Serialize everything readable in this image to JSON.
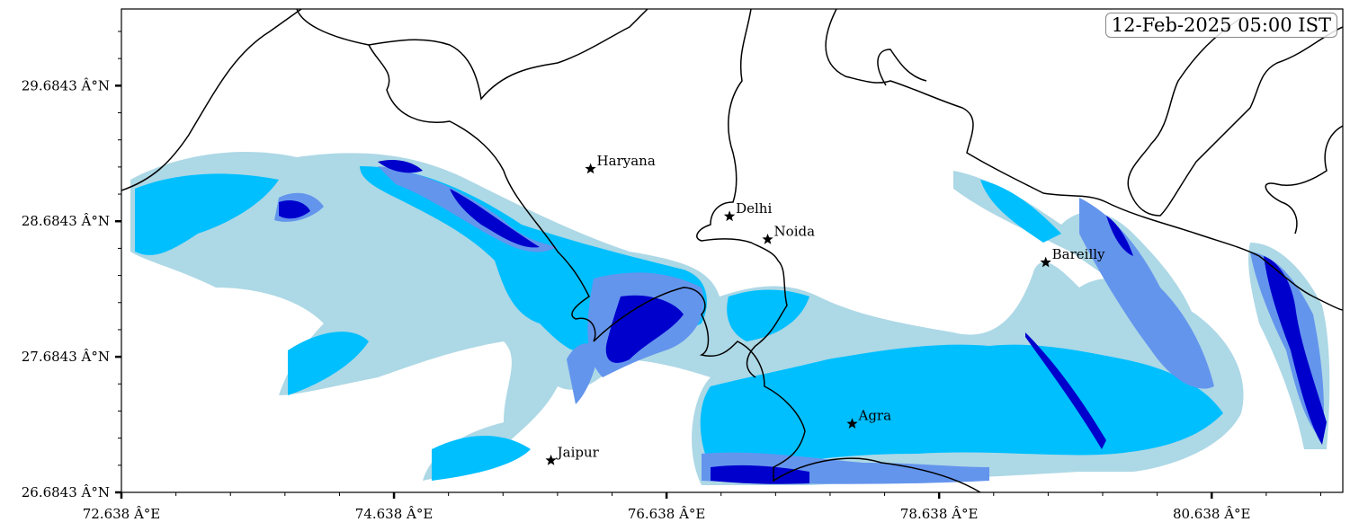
{
  "map": {
    "timestamp": "12-Feb-2025 05:00 IST",
    "extent": {
      "lon": [
        72.638,
        81.6
      ],
      "lat": [
        26.6843,
        30.25
      ]
    },
    "x_ticks": [
      {
        "value": 72.638,
        "label": "72.638 Â°E"
      },
      {
        "value": 74.638,
        "label": "74.638 Â°E"
      },
      {
        "value": 76.638,
        "label": "76.638 Â°E"
      },
      {
        "value": 78.638,
        "label": "78.638 Â°E"
      },
      {
        "value": 80.638,
        "label": "80.638 Â°E"
      }
    ],
    "y_ticks": [
      {
        "value": 26.6843,
        "label": "26.6843 Â°N"
      },
      {
        "value": 27.6843,
        "label": "27.6843 Â°N"
      },
      {
        "value": 28.6843,
        "label": "28.6843 Â°N"
      },
      {
        "value": 29.6843,
        "label": "29.6843 Â°N"
      }
    ],
    "fill_colors": [
      "#add8e6",
      "#00bfff",
      "#6495ed",
      "#0000cd"
    ],
    "cities": [
      {
        "name": "Haryana",
        "lon": 76.08,
        "lat": 29.07
      },
      {
        "name": "Delhi",
        "lon": 77.1,
        "lat": 28.72
      },
      {
        "name": "Noida",
        "lon": 77.38,
        "lat": 28.55
      },
      {
        "name": "Bareilly",
        "lon": 79.42,
        "lat": 28.38
      },
      {
        "name": "Agra",
        "lon": 78.0,
        "lat": 27.19
      },
      {
        "name": "Jaipur",
        "lon": 75.79,
        "lat": 26.92
      }
    ]
  }
}
